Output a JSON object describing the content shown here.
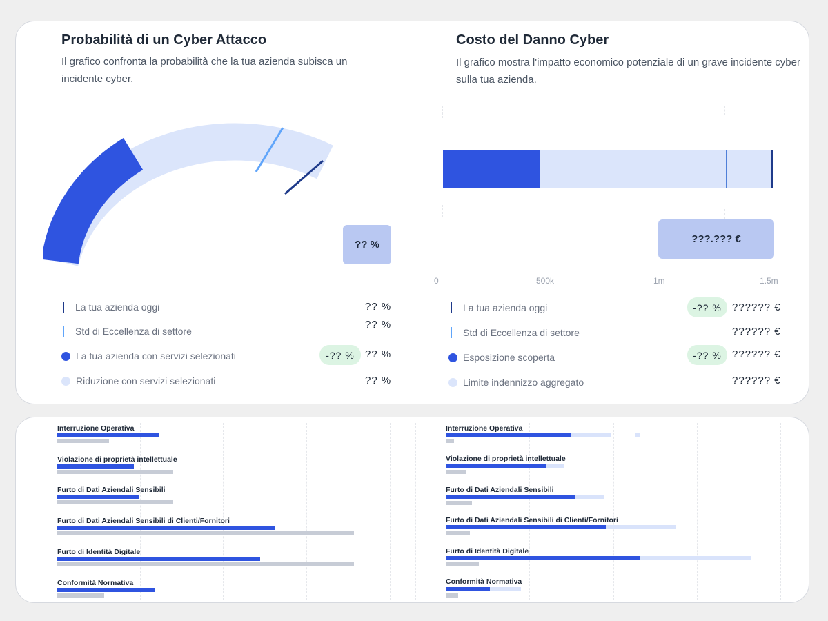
{
  "probability_panel": {
    "title": "Probabilità di un Cyber Attacco",
    "description": "Il grafico confronta la probabilità che la tua azienda subisca un incidente cyber.",
    "badge": "?? %",
    "legend": [
      {
        "label": "La tua azienda oggi",
        "value": "?? %"
      },
      {
        "label": "Std di Eccellenza di settore",
        "value": "?? %"
      },
      {
        "label": "La tua azienda con servizi selezionati",
        "delta": "-?? %",
        "value": "?? %"
      },
      {
        "label": "Riduzione con servizi selezionati",
        "value": "?? %"
      }
    ]
  },
  "cost_panel": {
    "title": "Costo del Danno Cyber",
    "description": "Il grafico mostra l'impatto economico potenziale di un grave incidente cyber sulla tua azienda.",
    "badge": "???.??? €",
    "ticks": [
      "0",
      "500k",
      "1m",
      "1.5m"
    ],
    "legend": [
      {
        "label": "La tua azienda oggi",
        "delta": "-?? %",
        "value": "?????? €"
      },
      {
        "label": "Std di Eccellenza di settore",
        "value": "?????? €"
      },
      {
        "label": "Esposizione scoperta",
        "delta": "-?? %",
        "value": "?????? €"
      },
      {
        "label": "Limite indennizzo aggregato",
        "value": "?????? €"
      }
    ]
  },
  "colors": {
    "dark_blue": "#2f54e0",
    "light_blue": "#dbe5fb",
    "navy": "#1e3a8a",
    "sky": "#60a5fa",
    "green_pill": "#dcf4e3"
  },
  "breakdown_left": {
    "categories": [
      "Interruzione Operativa",
      "Violazione di proprietà intellettuale",
      "Furto di Dati Aziendali Sensibili",
      "Furto di Dati Aziendali Sensibili di Clienti/Fornitori",
      "Furto di Identità Digitale",
      "Conformità Normativa"
    ]
  },
  "breakdown_right": {
    "categories": [
      "Interruzione Operativa",
      "Violazione di proprietà intellettuale",
      "Furto di Dati Aziendali Sensibili",
      "Furto di Dati Aziendali Sensibili di Clienti/Fornitori",
      "Furto di Identità Digitale",
      "Conformità Normativa"
    ]
  }
}
